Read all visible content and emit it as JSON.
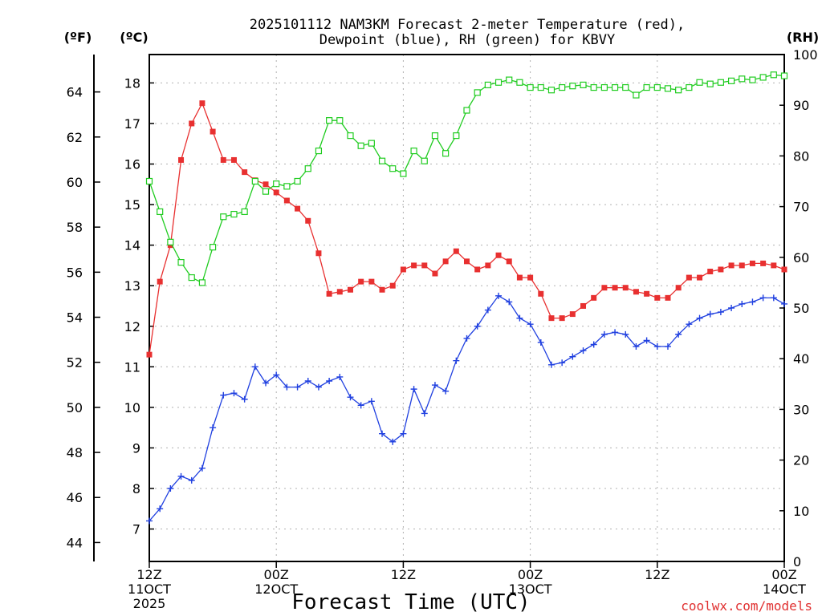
{
  "chart_data": {
    "type": "line",
    "title_line1": "2025101112 NAM3KM Forecast 2-meter Temperature (red),",
    "title_line2": "Dewpoint (blue), RH (green) for KBVY",
    "xlabel": "Forecast Time (UTC)",
    "credit": "coolwx.com/models",
    "units": {
      "fahrenheit": "(ºF)",
      "celsius": "(ºC)",
      "rh": "(RH)"
    },
    "x_ticks": [
      {
        "hour": 0,
        "label1": "12Z",
        "label2": "11OCT",
        "label3": "2025"
      },
      {
        "hour": 12,
        "label1": "00Z",
        "label2": "12OCT",
        "label3": ""
      },
      {
        "hour": 24,
        "label1": "12Z",
        "label2": "",
        "label3": ""
      },
      {
        "hour": 36,
        "label1": "00Z",
        "label2": "13OCT",
        "label3": ""
      },
      {
        "hour": 48,
        "label1": "12Z",
        "label2": "",
        "label3": ""
      },
      {
        "hour": 60,
        "label1": "00Z",
        "label2": "14OCT",
        "label3": ""
      }
    ],
    "xlim": [
      0,
      60
    ],
    "celsius_range": [
      6.2,
      18.7
    ],
    "celsius_ticks": [
      7,
      8,
      9,
      10,
      11,
      12,
      13,
      14,
      15,
      16,
      17,
      18
    ],
    "fahrenheit_ticks": [
      44,
      46,
      48,
      50,
      52,
      54,
      56,
      58,
      60,
      62,
      64
    ],
    "rh_range": [
      0,
      100
    ],
    "rh_ticks": [
      0,
      10,
      20,
      30,
      40,
      50,
      60,
      70,
      80,
      90,
      100
    ],
    "colors": {
      "temperature": "#e83030",
      "dewpoint": "#2040e0",
      "rh": "#20cc20"
    },
    "series": [
      {
        "name": "Temperature",
        "unit": "C",
        "x": [
          0,
          1,
          2,
          3,
          4,
          5,
          6,
          7,
          8,
          9,
          10,
          11,
          12,
          13,
          14,
          15,
          16,
          17,
          18,
          19,
          20,
          21,
          22,
          23,
          24,
          25,
          26,
          27,
          28,
          29,
          30,
          31,
          32,
          33,
          34,
          35,
          36,
          37,
          38,
          39,
          40,
          41,
          42,
          43,
          44,
          45,
          46,
          47,
          48,
          49,
          50,
          51,
          52,
          53,
          54,
          55,
          56,
          57,
          58,
          59,
          60
        ],
        "values": [
          11.3,
          13.1,
          14.0,
          16.1,
          17.0,
          17.5,
          16.8,
          16.1,
          16.1,
          15.8,
          15.6,
          15.5,
          15.3,
          15.1,
          14.9,
          14.6,
          13.8,
          12.8,
          12.85,
          12.9,
          13.1,
          13.1,
          12.9,
          13.0,
          13.4,
          13.5,
          13.5,
          13.3,
          13.6,
          13.85,
          13.6,
          13.4,
          13.5,
          13.75,
          13.6,
          13.2,
          13.2,
          12.8,
          12.2,
          12.2,
          12.3,
          12.5,
          12.7,
          12.95,
          12.95,
          12.95,
          12.85,
          12.8,
          12.7,
          12.7,
          12.95,
          13.2,
          13.2,
          13.35,
          13.4,
          13.5,
          13.5,
          13.55,
          13.55,
          13.5,
          13.4
        ]
      },
      {
        "name": "Dewpoint",
        "unit": "C",
        "x": [
          0,
          1,
          2,
          3,
          4,
          5,
          6,
          7,
          8,
          9,
          10,
          11,
          12,
          13,
          14,
          15,
          16,
          17,
          18,
          19,
          20,
          21,
          22,
          23,
          24,
          25,
          26,
          27,
          28,
          29,
          30,
          31,
          32,
          33,
          34,
          35,
          36,
          37,
          38,
          39,
          40,
          41,
          42,
          43,
          44,
          45,
          46,
          47,
          48,
          49,
          50,
          51,
          52,
          53,
          54,
          55,
          56,
          57,
          58,
          59,
          60
        ],
        "values": [
          7.2,
          7.5,
          8.0,
          8.3,
          8.2,
          8.5,
          9.5,
          10.3,
          10.35,
          10.2,
          11.0,
          10.6,
          10.8,
          10.5,
          10.5,
          10.65,
          10.5,
          10.65,
          10.75,
          10.25,
          10.05,
          10.15,
          9.35,
          9.15,
          9.35,
          10.45,
          9.85,
          10.55,
          10.4,
          11.15,
          11.7,
          12.0,
          12.4,
          12.75,
          12.6,
          12.2,
          12.05,
          11.6,
          11.05,
          11.1,
          11.25,
          11.4,
          11.55,
          11.8,
          11.85,
          11.8,
          11.5,
          11.65,
          11.5,
          11.5,
          11.8,
          12.05,
          12.2,
          12.3,
          12.35,
          12.45,
          12.55,
          12.6,
          12.7,
          12.7,
          12.55
        ]
      },
      {
        "name": "RH",
        "unit": "%",
        "x": [
          0,
          1,
          2,
          3,
          4,
          5,
          6,
          7,
          8,
          9,
          10,
          11,
          12,
          13,
          14,
          15,
          16,
          17,
          18,
          19,
          20,
          21,
          22,
          23,
          24,
          25,
          26,
          27,
          28,
          29,
          30,
          31,
          32,
          33,
          34,
          35,
          36,
          37,
          38,
          39,
          40,
          41,
          42,
          43,
          44,
          45,
          46,
          47,
          48,
          49,
          50,
          51,
          52,
          53,
          54,
          55,
          56,
          57,
          58,
          59,
          60
        ],
        "values": [
          75,
          69,
          63,
          59,
          56,
          55,
          62,
          68,
          68.5,
          69,
          75,
          73,
          74.5,
          74,
          75,
          77.5,
          81,
          87,
          87,
          84,
          82,
          82.5,
          79,
          77.5,
          76.5,
          81,
          79,
          84,
          80.5,
          84,
          89,
          92.5,
          94,
          94.5,
          95,
          94.5,
          93.5,
          93.5,
          93,
          93.5,
          93.8,
          94,
          93.5,
          93.5,
          93.5,
          93.5,
          92,
          93.5,
          93.5,
          93.3,
          93,
          93.5,
          94.5,
          94.2,
          94.5,
          94.8,
          95.2,
          95,
          95.5,
          96,
          95.8
        ]
      }
    ]
  }
}
